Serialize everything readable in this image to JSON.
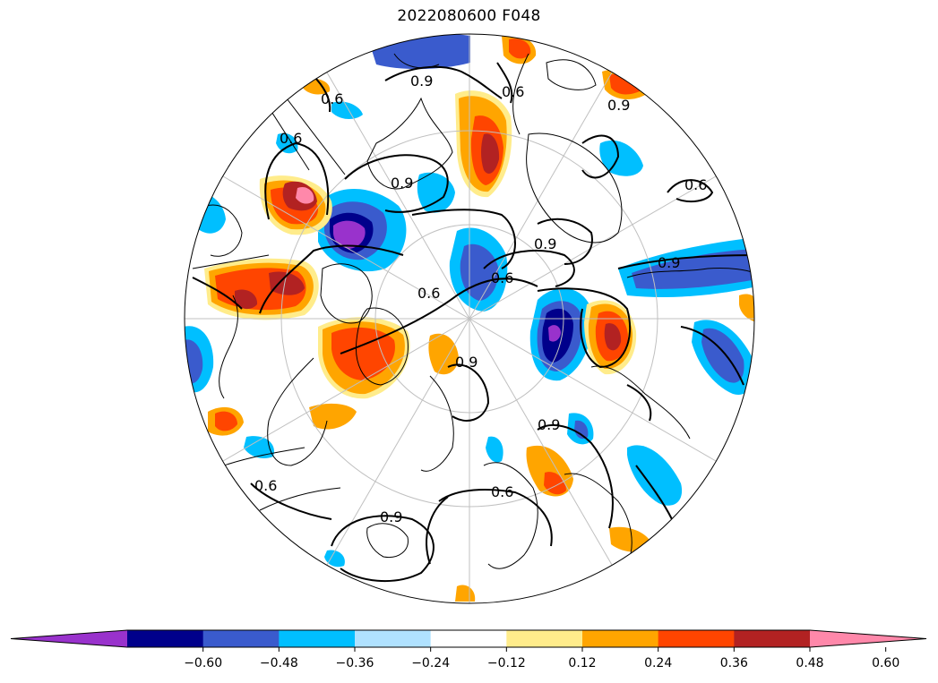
{
  "title": "2022080600 F048",
  "colorbar": {
    "extend_min_color": "#9932CC",
    "extend_max_color": "#FF88AA",
    "bins": [
      {
        "color": "#9932CC"
      },
      {
        "color": "#00008B"
      },
      {
        "color": "#3A5BCD"
      },
      {
        "color": "#00BFFF"
      },
      {
        "color": "#B0E2FF"
      },
      {
        "color": "#FFFFFF"
      },
      {
        "color": "#FFEC8B"
      },
      {
        "color": "#FFA500"
      },
      {
        "color": "#FF4500"
      },
      {
        "color": "#B22222"
      },
      {
        "color": "#FF88AA"
      }
    ],
    "tick_labels": [
      "−0.60",
      "−0.48",
      "−0.36",
      "−0.24",
      "−0.12",
      "0.12",
      "0.24",
      "0.36",
      "0.48",
      "0.60"
    ]
  },
  "contour_labels": [
    "0.6",
    "0.9"
  ]
}
